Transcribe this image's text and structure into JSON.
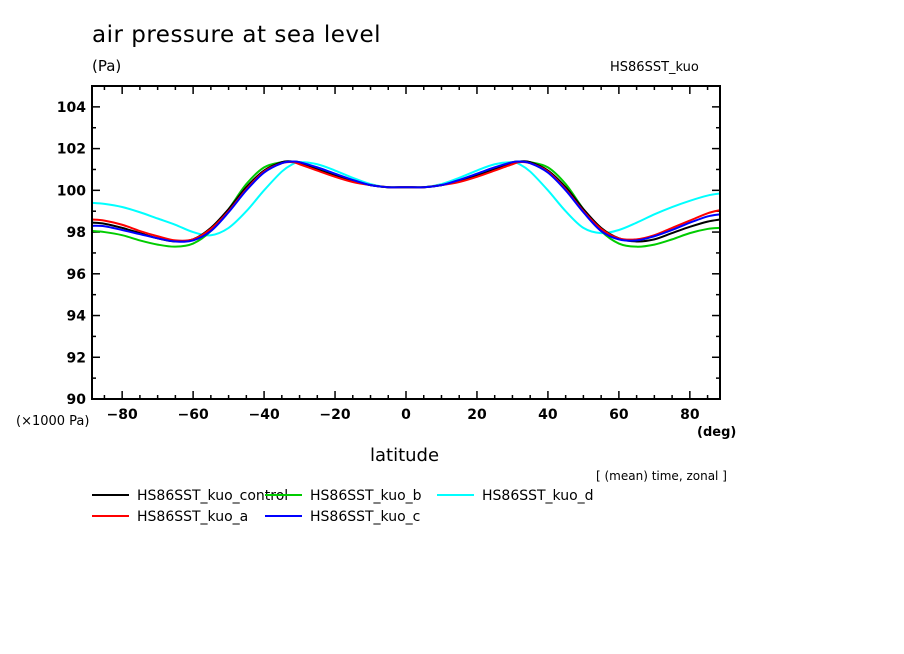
{
  "header": {
    "title": "air pressure at sea level",
    "units": "(Pa)",
    "run_name": "HS86SST_kuo"
  },
  "footer": {
    "x_unit": "(deg)",
    "y_scale": "(×1000 Pa)",
    "note": "[ (mean) time, zonal ]"
  },
  "chart_data": {
    "type": "line",
    "title": "air pressure at sea level",
    "xlabel": "latitude",
    "ylabel": "(Pa)",
    "x_unit": "(deg)",
    "y_scale_note": "(×1000 Pa)",
    "xlim": [
      -88.5,
      88.5
    ],
    "ylim": [
      90,
      105
    ],
    "xticks": [
      -80,
      -60,
      -40,
      -20,
      0,
      20,
      40,
      60,
      80
    ],
    "xtick_labels": [
      "−80",
      "−60",
      "−40",
      "−20",
      "0",
      "20",
      "40",
      "60",
      "80"
    ],
    "yticks": [
      90,
      92,
      94,
      96,
      98,
      100,
      102,
      104
    ],
    "ytick_labels": [
      "90",
      "92",
      "94",
      "96",
      "98",
      "100",
      "102",
      "104"
    ],
    "grid": false,
    "legend_position": "bottom-left",
    "x": [
      -88.5,
      -85,
      -80,
      -75,
      -70,
      -65,
      -60,
      -55,
      -50,
      -45,
      -40,
      -35,
      -32,
      -30,
      -25,
      -20,
      -15,
      -10,
      -5,
      0,
      5,
      10,
      15,
      20,
      25,
      30,
      32,
      35,
      40,
      45,
      50,
      55,
      60,
      65,
      70,
      75,
      80,
      85,
      88.5
    ],
    "series": [
      {
        "name": "HS86SST_kuo_control",
        "color": "#000000",
        "values": [
          98.45,
          98.4,
          98.2,
          97.95,
          97.7,
          97.55,
          97.65,
          98.2,
          99.1,
          100.15,
          100.95,
          101.35,
          101.38,
          101.3,
          101.0,
          100.7,
          100.45,
          100.25,
          100.15,
          100.15,
          100.15,
          100.25,
          100.45,
          100.7,
          101.0,
          101.3,
          101.38,
          101.35,
          100.95,
          100.15,
          99.1,
          98.2,
          97.7,
          97.55,
          97.65,
          97.95,
          98.25,
          98.5,
          98.6
        ]
      },
      {
        "name": "HS86SST_kuo_a",
        "color": "#ff0000",
        "values": [
          98.6,
          98.55,
          98.35,
          98.05,
          97.8,
          97.6,
          97.65,
          98.15,
          99.0,
          100.05,
          100.9,
          101.3,
          101.35,
          101.25,
          100.95,
          100.65,
          100.4,
          100.25,
          100.15,
          100.15,
          100.15,
          100.25,
          100.4,
          100.65,
          100.95,
          101.25,
          101.35,
          101.3,
          100.9,
          100.05,
          99.0,
          98.15,
          97.7,
          97.65,
          97.85,
          98.2,
          98.55,
          98.9,
          99.05
        ]
      },
      {
        "name": "HS86SST_kuo_b",
        "color": "#00cc00",
        "values": [
          98.05,
          98.0,
          97.85,
          97.6,
          97.4,
          97.3,
          97.45,
          98.05,
          99.1,
          100.3,
          101.1,
          101.35,
          101.38,
          101.35,
          101.05,
          100.75,
          100.45,
          100.25,
          100.15,
          100.15,
          100.15,
          100.25,
          100.45,
          100.75,
          101.05,
          101.35,
          101.38,
          101.35,
          101.1,
          100.3,
          99.1,
          98.05,
          97.45,
          97.3,
          97.4,
          97.65,
          97.95,
          98.15,
          98.2
        ]
      },
      {
        "name": "HS86SST_kuo_c",
        "color": "#0000ff",
        "values": [
          98.3,
          98.28,
          98.1,
          97.9,
          97.7,
          97.55,
          97.6,
          98.05,
          98.95,
          100.0,
          100.85,
          101.3,
          101.38,
          101.35,
          101.1,
          100.8,
          100.5,
          100.25,
          100.15,
          100.15,
          100.15,
          100.25,
          100.5,
          100.8,
          101.1,
          101.35,
          101.38,
          101.3,
          100.85,
          100.0,
          98.95,
          98.05,
          97.65,
          97.6,
          97.8,
          98.1,
          98.45,
          98.75,
          98.85
        ]
      },
      {
        "name": "HS86SST_kuo_d",
        "color": "#00ffff",
        "values": [
          99.4,
          99.35,
          99.2,
          98.95,
          98.65,
          98.35,
          98.0,
          97.85,
          98.2,
          99.0,
          100.0,
          100.9,
          101.25,
          101.35,
          101.25,
          100.95,
          100.6,
          100.3,
          100.15,
          100.15,
          100.15,
          100.3,
          100.6,
          100.95,
          101.25,
          101.35,
          101.25,
          100.9,
          100.0,
          99.0,
          98.2,
          97.95,
          98.1,
          98.45,
          98.85,
          99.2,
          99.5,
          99.75,
          99.85
        ]
      }
    ]
  }
}
